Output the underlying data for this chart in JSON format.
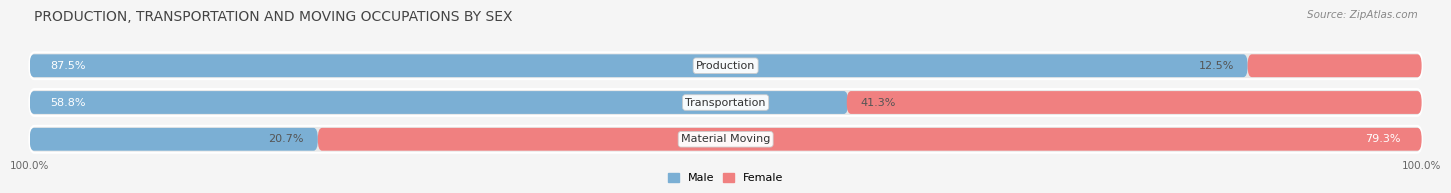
{
  "title": "PRODUCTION, TRANSPORTATION AND MOVING OCCUPATIONS BY SEX",
  "source": "Source: ZipAtlas.com",
  "categories": [
    "Production",
    "Transportation",
    "Material Moving"
  ],
  "male_values": [
    87.5,
    58.8,
    20.7
  ],
  "female_values": [
    12.5,
    41.3,
    79.3
  ],
  "male_color": "#7bafd4",
  "female_color": "#f08080",
  "male_color_legend": "#7bafd4",
  "female_color_legend": "#f08080",
  "row_bg_color": "#e8e8e8",
  "bg_color": "#f5f5f5",
  "title_fontsize": 10,
  "source_fontsize": 7.5,
  "value_fontsize": 8,
  "cat_fontsize": 8,
  "tick_label": "100.0%",
  "legend_male": "Male",
  "legend_female": "Female",
  "total_width": 100
}
